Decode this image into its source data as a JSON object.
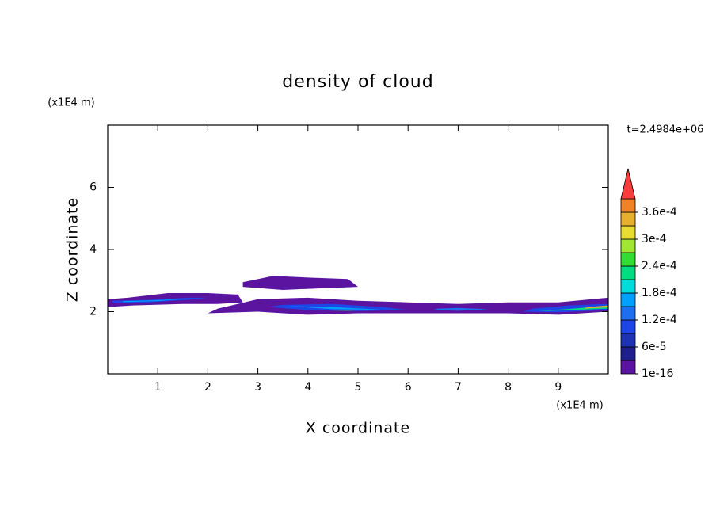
{
  "chart_data": {
    "type": "contour",
    "title": "density of cloud",
    "x_label": "X coordinate",
    "y_label": "Z coordinate",
    "x_unit": "(x1E4 m)",
    "y_unit": "(x1E4 m)",
    "annotation": "t=2.4984e+06",
    "xlim": [
      0,
      10
    ],
    "ylim": [
      0,
      8
    ],
    "xticks": [
      1,
      2,
      3,
      4,
      5,
      6,
      7,
      8,
      9
    ],
    "yticks": [
      2,
      4,
      6
    ],
    "colorbar": {
      "levels": [
        1e-16,
        3e-05,
        6e-05,
        9e-05,
        0.00012,
        0.00015,
        0.00018,
        0.00021,
        0.00024,
        0.00027,
        0.0003,
        0.00033,
        0.00036,
        0.00039
      ],
      "colors": [
        "#5a14a0",
        "#1e1e8c",
        "#1e32b4",
        "#1e46e6",
        "#1e6ef0",
        "#00a0ff",
        "#00dcdc",
        "#00dc82",
        "#32dc32",
        "#a0e632",
        "#e6dc32",
        "#e6af2d",
        "#f08228",
        "#fa3c3c",
        "#f0a0a0"
      ],
      "ticks": [
        {
          "value": 1e-16,
          "label": "1e-16"
        },
        {
          "value": 6e-05,
          "label": "6e-5"
        },
        {
          "value": 0.00012,
          "label": "1.2e-4"
        },
        {
          "value": 0.00018,
          "label": "1.8e-4"
        },
        {
          "value": 0.00024,
          "label": "2.4e-4"
        },
        {
          "value": 0.0003,
          "label": "3e-4"
        },
        {
          "value": 0.00036,
          "label": "3.6e-4"
        }
      ]
    },
    "contours": [
      {
        "level": 1e-16,
        "x": [
          0,
          0.5,
          1.5,
          2.2,
          2.7,
          2.6,
          2.0,
          1.2,
          0.4,
          0
        ],
        "z": [
          2.15,
          2.2,
          2.25,
          2.25,
          2.3,
          2.55,
          2.6,
          2.6,
          2.45,
          2.4
        ]
      },
      {
        "level": 1e-16,
        "x": [
          2.0,
          3.0,
          4.0,
          5.0,
          6.0,
          7.0,
          8.0,
          9.0,
          10.0,
          10.0,
          9.0,
          8.0,
          7.0,
          6.0,
          5.0,
          4.0,
          3.0,
          2.2
        ],
        "z": [
          1.95,
          2.0,
          1.9,
          1.95,
          1.95,
          1.95,
          1.95,
          1.9,
          2.0,
          2.45,
          2.3,
          2.3,
          2.25,
          2.3,
          2.35,
          2.45,
          2.4,
          2.1
        ]
      },
      {
        "level": 1e-16,
        "x": [
          2.7,
          3.5,
          4.2,
          5.0,
          4.8,
          4.0,
          3.3,
          2.7
        ],
        "z": [
          2.8,
          2.7,
          2.75,
          2.8,
          3.05,
          3.1,
          3.15,
          2.95
        ]
      },
      {
        "level": 9e-05,
        "x": [
          0.1,
          0.8,
          1.6,
          2.0,
          1.6,
          0.8,
          0.1
        ],
        "z": [
          2.28,
          2.3,
          2.38,
          2.45,
          2.45,
          2.38,
          2.35
        ]
      },
      {
        "level": 0.00015,
        "x": [
          0.3,
          1.0,
          1.6,
          1.0,
          0.3
        ],
        "z": [
          2.31,
          2.34,
          2.42,
          2.37,
          2.34
        ]
      },
      {
        "level": 9e-05,
        "x": [
          3.2,
          4,
          5,
          6,
          5.5,
          4.5,
          3.5
        ],
        "z": [
          2.15,
          2.05,
          2.02,
          2.05,
          2.15,
          2.25,
          2.22
        ]
      },
      {
        "level": 0.00015,
        "x": [
          3.6,
          4.5,
          5.5,
          4.5
        ],
        "z": [
          2.18,
          2.08,
          2.06,
          2.15
        ]
      },
      {
        "level": 0.00024,
        "x": [
          4.3,
          4.8,
          5.2,
          4.8
        ],
        "z": [
          2.04,
          2.03,
          2.05,
          2.06
        ]
      },
      {
        "level": 0.00012,
        "x": [
          6.5,
          7,
          7.6,
          7,
          6.6
        ],
        "z": [
          2.05,
          2.03,
          2.08,
          2.12,
          2.1
        ]
      },
      {
        "level": 9e-05,
        "x": [
          8.3,
          9,
          10,
          10,
          9.2,
          8.5
        ],
        "z": [
          2.0,
          1.98,
          2.05,
          2.25,
          2.2,
          2.1
        ]
      },
      {
        "level": 0.00021,
        "x": [
          8.6,
          9.2,
          10,
          10,
          9.3
        ],
        "z": [
          2.02,
          2.04,
          2.1,
          2.2,
          2.1
        ]
      },
      {
        "level": 0.00033,
        "x": [
          9.5,
          10,
          10,
          9.6
        ],
        "z": [
          2.1,
          2.14,
          2.2,
          2.15
        ]
      }
    ]
  }
}
